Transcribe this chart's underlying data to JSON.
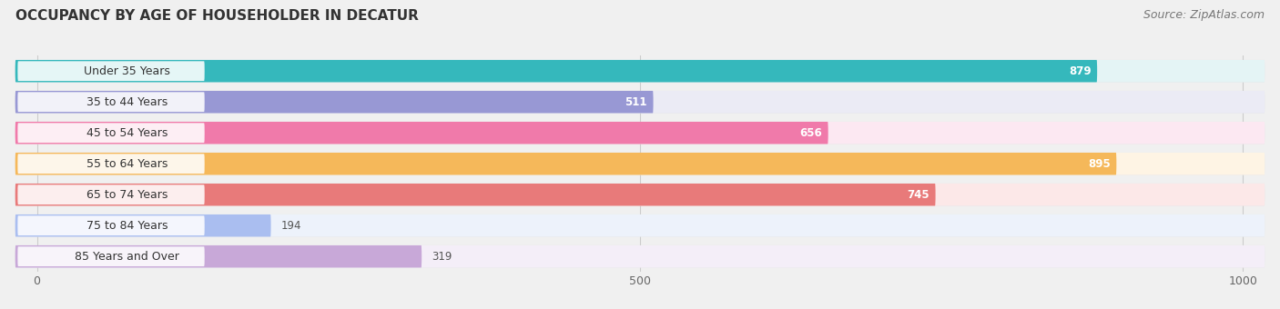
{
  "title": "OCCUPANCY BY AGE OF HOUSEHOLDER IN DECATUR",
  "source": "Source: ZipAtlas.com",
  "categories": [
    "Under 35 Years",
    "35 to 44 Years",
    "45 to 54 Years",
    "55 to 64 Years",
    "65 to 74 Years",
    "75 to 84 Years",
    "85 Years and Over"
  ],
  "values": [
    879,
    511,
    656,
    895,
    745,
    194,
    319
  ],
  "bar_colors": [
    "#35b8bc",
    "#9898d4",
    "#f07aaa",
    "#f5b85a",
    "#e87a7a",
    "#aabef0",
    "#c8a8d8"
  ],
  "bar_bg_colors": [
    "#e4f4f5",
    "#ebebf5",
    "#fce8f2",
    "#fef4e4",
    "#fce8e8",
    "#edf2fb",
    "#f4eef8"
  ],
  "xlim_max": 1000,
  "xticks": [
    0,
    500,
    1000
  ],
  "title_fontsize": 11,
  "source_fontsize": 9,
  "label_fontsize": 9,
  "value_fontsize": 8.5,
  "bg_color": "#f0f0f0",
  "row_bg_color": "#e8e8e8"
}
